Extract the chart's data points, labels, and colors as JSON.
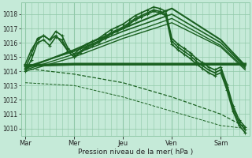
{
  "bg_color": "#c5ead8",
  "grid_color": "#90c8a8",
  "line_color": "#1a6020",
  "xlabel_text": "Pression niveau de la mer( hPa )",
  "ylim": [
    1009.5,
    1018.8
  ],
  "yticks": [
    1010,
    1011,
    1012,
    1013,
    1014,
    1015,
    1016,
    1017,
    1018
  ],
  "xtick_labels": [
    "Mar",
    "Mer",
    "Jeu",
    "Ven",
    "Sam"
  ],
  "xtick_pos": [
    0,
    48,
    96,
    144,
    192
  ],
  "xvlines": [
    0,
    48,
    96,
    144,
    192
  ],
  "xlim": [
    -4,
    220
  ],
  "series": [
    {
      "x": [
        0,
        6,
        12,
        18,
        24,
        30,
        36,
        42,
        48,
        54,
        60,
        66,
        72,
        78,
        84,
        90,
        96,
        102,
        108,
        114,
        120,
        126,
        132,
        138,
        144,
        150,
        156,
        162,
        168,
        174,
        180,
        186,
        192,
        198,
        204,
        210,
        216
      ],
      "y": [
        1014.2,
        1015.2,
        1016.3,
        1016.5,
        1016.2,
        1016.8,
        1016.5,
        1015.6,
        1015.2,
        1015.6,
        1015.9,
        1016.1,
        1016.3,
        1016.6,
        1016.9,
        1017.1,
        1017.3,
        1017.6,
        1017.9,
        1018.1,
        1018.3,
        1018.5,
        1018.4,
        1018.2,
        1016.3,
        1015.9,
        1015.6,
        1015.3,
        1014.9,
        1014.6,
        1014.3,
        1014.1,
        1014.3,
        1013.1,
        1011.6,
        1010.6,
        1010.1
      ],
      "style": "-",
      "marker": "+",
      "lw": 1.2,
      "ms": 3.5,
      "mew": 0.8
    },
    {
      "x": [
        0,
        48,
        96,
        144,
        192,
        216
      ],
      "y": [
        1014.2,
        1015.5,
        1017.0,
        1018.4,
        1016.2,
        1014.4
      ],
      "style": "-",
      "marker": null,
      "lw": 1.5,
      "ms": 0,
      "mew": 0
    },
    {
      "x": [
        0,
        48,
        96,
        144,
        192,
        216
      ],
      "y": [
        1014.3,
        1015.4,
        1016.8,
        1018.0,
        1016.0,
        1014.3
      ],
      "style": "-",
      "marker": null,
      "lw": 1.2,
      "ms": 0,
      "mew": 0
    },
    {
      "x": [
        0,
        48,
        96,
        144,
        192,
        216
      ],
      "y": [
        1014.1,
        1015.2,
        1016.5,
        1017.7,
        1015.8,
        1014.2
      ],
      "style": "-",
      "marker": null,
      "lw": 1.0,
      "ms": 0,
      "mew": 0
    },
    {
      "x": [
        0,
        48,
        96,
        144,
        192,
        216
      ],
      "y": [
        1014.0,
        1015.0,
        1016.3,
        1017.4,
        1015.7,
        1014.1
      ],
      "style": "-",
      "marker": null,
      "lw": 1.0,
      "ms": 0,
      "mew": 0
    },
    {
      "x": [
        0,
        48,
        96,
        144,
        192,
        216
      ],
      "y": [
        1014.4,
        1014.5,
        1014.5,
        1014.5,
        1014.5,
        1014.5
      ],
      "style": "-",
      "marker": null,
      "lw": 2.5,
      "ms": 0,
      "mew": 0
    },
    {
      "x": [
        0,
        48,
        96,
        144,
        192,
        216
      ],
      "y": [
        1014.2,
        1013.8,
        1013.2,
        1012.2,
        1011.0,
        1010.1
      ],
      "style": "--",
      "marker": null,
      "lw": 0.9,
      "ms": 0,
      "mew": 0
    },
    {
      "x": [
        0,
        48,
        96,
        144,
        192,
        216
      ],
      "y": [
        1013.2,
        1013.0,
        1012.2,
        1011.2,
        1010.2,
        1010.0
      ],
      "style": "--",
      "marker": null,
      "lw": 0.7,
      "ms": 0,
      "mew": 0
    },
    {
      "x": [
        0,
        6,
        12,
        18,
        24,
        30,
        36,
        42,
        48,
        54,
        60,
        66,
        72,
        78,
        84,
        90,
        96,
        102,
        108,
        114,
        120,
        126,
        132,
        138,
        144,
        150,
        156,
        162,
        168,
        174,
        180,
        186,
        192,
        198,
        204,
        210,
        216
      ],
      "y": [
        1014.0,
        1014.8,
        1016.0,
        1016.2,
        1015.8,
        1016.4,
        1016.2,
        1015.4,
        1015.0,
        1015.4,
        1015.7,
        1015.9,
        1016.1,
        1016.4,
        1016.7,
        1016.9,
        1017.1,
        1017.4,
        1017.7,
        1017.9,
        1018.1,
        1018.3,
        1018.2,
        1018.0,
        1016.1,
        1015.7,
        1015.4,
        1015.1,
        1014.7,
        1014.4,
        1014.1,
        1013.9,
        1014.1,
        1012.9,
        1011.4,
        1010.4,
        1009.9
      ],
      "style": "-",
      "marker": "+",
      "lw": 1.2,
      "ms": 3.5,
      "mew": 0.8
    },
    {
      "x": [
        0,
        6,
        12,
        18,
        24,
        30,
        36,
        42,
        48,
        54,
        60,
        66,
        72,
        78,
        84,
        90,
        96,
        102,
        108,
        114,
        120,
        126,
        132,
        138,
        144,
        150,
        156,
        162,
        168,
        174,
        180,
        186,
        192,
        198,
        204,
        210,
        216
      ],
      "y": [
        1014.5,
        1015.5,
        1016.2,
        1016.5,
        1016.2,
        1016.5,
        1016.0,
        1015.4,
        1015.0,
        1015.3,
        1015.6,
        1015.8,
        1016.0,
        1016.3,
        1016.6,
        1016.8,
        1017.0,
        1017.3,
        1017.6,
        1017.8,
        1018.0,
        1018.2,
        1018.1,
        1017.9,
        1015.9,
        1015.5,
        1015.2,
        1014.9,
        1014.5,
        1014.2,
        1013.9,
        1013.7,
        1013.9,
        1012.7,
        1011.2,
        1010.2,
        1009.7
      ],
      "style": "-",
      "marker": "+",
      "lw": 1.2,
      "ms": 3.5,
      "mew": 0.8
    }
  ]
}
